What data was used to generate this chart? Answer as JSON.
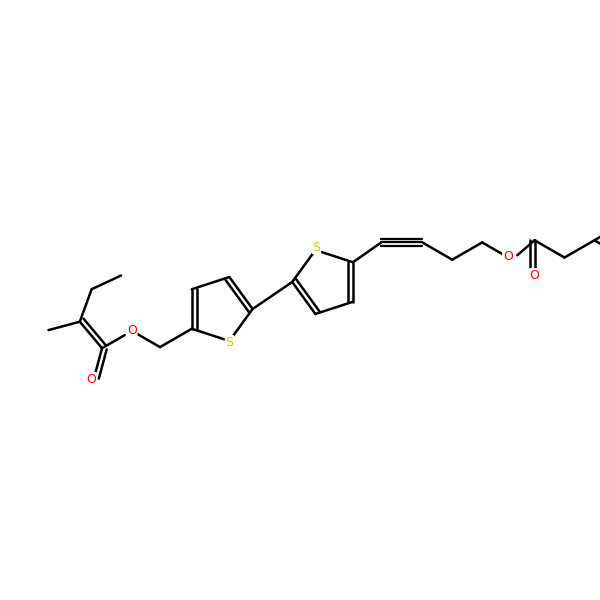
{
  "bg_color": "#ffffff",
  "bond_color": "#000000",
  "sulfur_color": "#cccc00",
  "oxygen_color": "#ff0000",
  "line_width": 1.8,
  "fig_size": [
    6.0,
    6.0
  ],
  "dpi": 100,
  "xlim": [
    0,
    10
  ],
  "ylim": [
    0,
    10
  ]
}
